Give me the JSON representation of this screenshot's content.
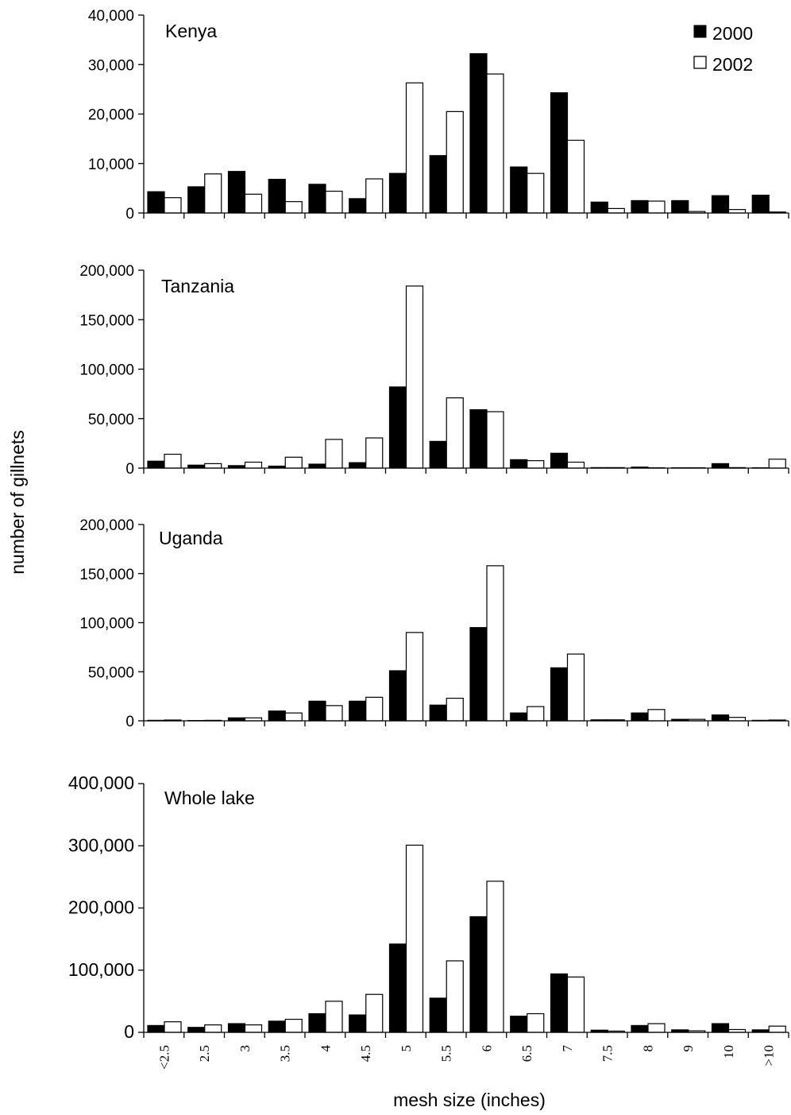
{
  "figure": {
    "ylabel": "number of gillnets",
    "xlabel": "mesh size (inches)"
  },
  "legend": {
    "placement": "top-right",
    "items": [
      {
        "label": "2000",
        "color": "#000000"
      },
      {
        "label": "2002",
        "color": "#ffffff"
      }
    ]
  },
  "chart_data": [
    {
      "type": "bar",
      "title": "Kenya",
      "categories": [
        "<2.5",
        "2.5",
        "3",
        "3.5",
        "4",
        "4.5",
        "5",
        "5.5",
        "6",
        "6.5",
        "7",
        "7.5",
        "8",
        "9",
        "10",
        ">10"
      ],
      "ylim": [
        0,
        40000
      ],
      "yticks": [
        0,
        10000,
        20000,
        30000,
        40000
      ],
      "ytick_labels": [
        "0",
        "10,000",
        "20,000",
        "30,000",
        "40,000"
      ],
      "series": [
        {
          "name": "2000",
          "color": "#000000",
          "values": [
            4300,
            5300,
            8400,
            6800,
            5800,
            2900,
            8000,
            11600,
            32200,
            9300,
            24300,
            2200,
            2500,
            2500,
            3500,
            3600
          ]
        },
        {
          "name": "2002",
          "color": "#ffffff",
          "values": [
            3100,
            7900,
            3800,
            2300,
            4400,
            6900,
            26300,
            20500,
            28100,
            8000,
            14700,
            900,
            2400,
            300,
            700,
            200
          ]
        }
      ]
    },
    {
      "type": "bar",
      "title": "Tanzania",
      "categories": [
        "<2.5",
        "2.5",
        "3",
        "3.5",
        "4",
        "4.5",
        "5",
        "5.5",
        "6",
        "6.5",
        "7",
        "7.5",
        "8",
        "9",
        "10",
        ">10"
      ],
      "ylim": [
        0,
        200000
      ],
      "yticks": [
        0,
        50000,
        100000,
        150000,
        200000
      ],
      "ytick_labels": [
        "0",
        "50,000",
        "100,000",
        "150,000",
        "200,000"
      ],
      "series": [
        {
          "name": "2000",
          "color": "#000000",
          "values": [
            7000,
            3000,
            2500,
            2000,
            4000,
            5500,
            82000,
            27000,
            59000,
            8500,
            15000,
            500,
            1000,
            300,
            4500,
            300
          ]
        },
        {
          "name": "2002",
          "color": "#ffffff",
          "values": [
            14000,
            4500,
            6000,
            11000,
            29000,
            30500,
            184000,
            71000,
            57000,
            7500,
            6000,
            500,
            300,
            300,
            500,
            9000
          ]
        }
      ]
    },
    {
      "type": "bar",
      "title": "Uganda",
      "categories": [
        "<2.5",
        "2.5",
        "3",
        "3.5",
        "4",
        "4.5",
        "5",
        "5.5",
        "6",
        "6.5",
        "7",
        "7.5",
        "8",
        "9",
        "10",
        ">10"
      ],
      "ylim": [
        0,
        200000
      ],
      "yticks": [
        0,
        50000,
        100000,
        150000,
        200000
      ],
      "ytick_labels": [
        "0",
        "50,000",
        "100,000",
        "150,000",
        "200,000"
      ],
      "series": [
        {
          "name": "2000",
          "color": "#000000",
          "values": [
            500,
            300,
            3000,
            10000,
            20000,
            20000,
            51000,
            16000,
            95000,
            8000,
            54000,
            1000,
            8000,
            1500,
            6000,
            500
          ]
        },
        {
          "name": "2002",
          "color": "#ffffff",
          "values": [
            800,
            500,
            3000,
            8000,
            15500,
            24000,
            90000,
            23000,
            158000,
            14500,
            68000,
            1000,
            11500,
            1500,
            3500,
            800
          ]
        }
      ]
    },
    {
      "type": "bar",
      "title": "Whole lake",
      "categories": [
        "<2.5",
        "2.5",
        "3",
        "3.5",
        "4",
        "4.5",
        "5",
        "5.5",
        "6",
        "6.5",
        "7",
        "7.5",
        "8",
        "9",
        "10",
        ">10"
      ],
      "ylim": [
        0,
        400000
      ],
      "yticks": [
        0,
        100000,
        200000,
        300000,
        400000
      ],
      "ytick_labels": [
        "0",
        "100,000",
        "200,000",
        "300,000",
        "400,000"
      ],
      "series": [
        {
          "name": "2000",
          "color": "#000000",
          "values": [
            11000,
            8000,
            14000,
            18000,
            30000,
            28000,
            142000,
            55000,
            186000,
            26000,
            94000,
            3500,
            11000,
            4000,
            14000,
            4000
          ]
        },
        {
          "name": "2002",
          "color": "#ffffff",
          "values": [
            17000,
            12000,
            12000,
            21000,
            50000,
            61000,
            301000,
            115000,
            243000,
            30000,
            89000,
            2000,
            14000,
            2500,
            4500,
            10000
          ]
        }
      ]
    }
  ]
}
